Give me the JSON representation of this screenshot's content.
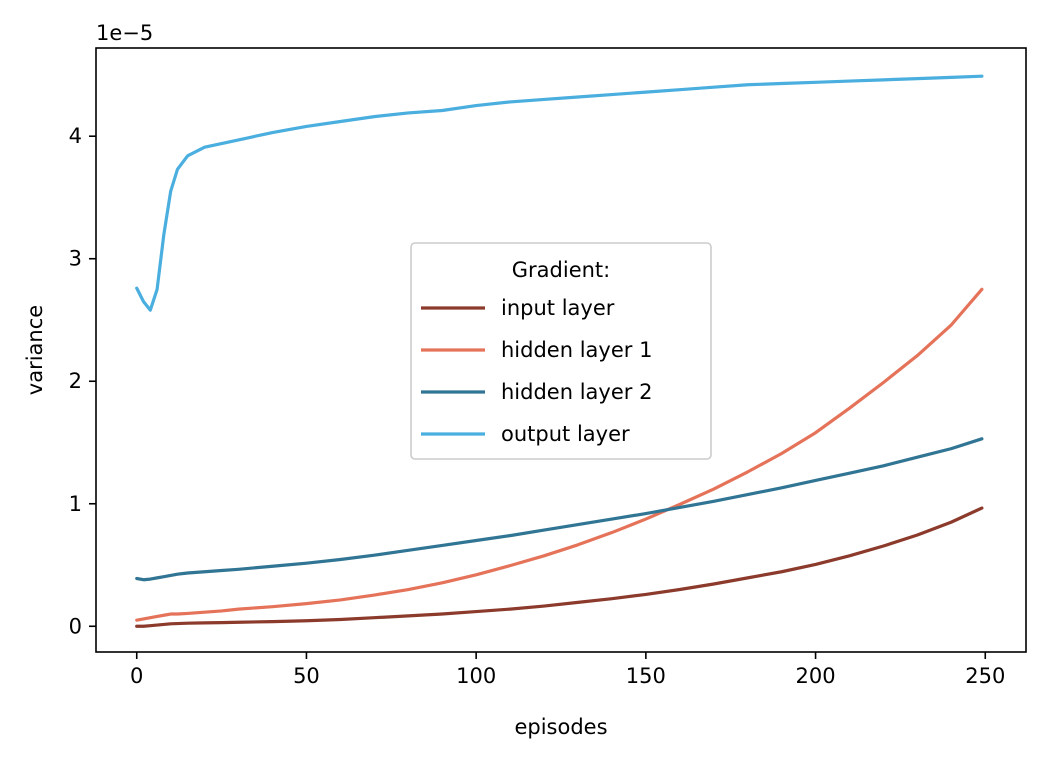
{
  "chart_data": {
    "type": "line",
    "title": "",
    "xlabel": "episodes",
    "ylabel": "variance",
    "y_offset_label": "1e−5",
    "xlim": [
      -12,
      262
    ],
    "ylim": [
      -0.21,
      4.72
    ],
    "xticks": [
      0,
      50,
      100,
      150,
      200,
      250
    ],
    "yticks": [
      0,
      1,
      2,
      3,
      4
    ],
    "grid": false,
    "legend": {
      "title": "Gradient:",
      "placement": "center"
    },
    "x": [
      0,
      2,
      4,
      6,
      8,
      10,
      12,
      15,
      20,
      25,
      30,
      40,
      50,
      60,
      70,
      80,
      90,
      100,
      110,
      120,
      130,
      140,
      150,
      160,
      170,
      180,
      190,
      200,
      210,
      220,
      230,
      240,
      249
    ],
    "series": [
      {
        "name": "input layer",
        "color": "#8B3A2B",
        "values": [
          0.0,
          0.0,
          0.005,
          0.01,
          0.015,
          0.02,
          0.022,
          0.025,
          0.028,
          0.03,
          0.033,
          0.038,
          0.045,
          0.055,
          0.07,
          0.085,
          0.1,
          0.12,
          0.14,
          0.165,
          0.195,
          0.225,
          0.26,
          0.3,
          0.345,
          0.395,
          0.445,
          0.505,
          0.575,
          0.655,
          0.745,
          0.85,
          0.965
        ]
      },
      {
        "name": "hidden layer 1",
        "color": "#E5735A",
        "values": [
          0.05,
          0.06,
          0.07,
          0.08,
          0.09,
          0.1,
          0.1,
          0.105,
          0.115,
          0.125,
          0.14,
          0.16,
          0.185,
          0.215,
          0.255,
          0.3,
          0.355,
          0.42,
          0.495,
          0.575,
          0.665,
          0.765,
          0.875,
          0.995,
          1.12,
          1.26,
          1.41,
          1.58,
          1.78,
          1.99,
          2.21,
          2.46,
          2.75
        ]
      },
      {
        "name": "hidden layer 2",
        "color": "#317594",
        "values": [
          0.39,
          0.38,
          0.385,
          0.395,
          0.405,
          0.415,
          0.425,
          0.435,
          0.445,
          0.455,
          0.465,
          0.49,
          0.515,
          0.545,
          0.58,
          0.62,
          0.66,
          0.7,
          0.74,
          0.785,
          0.83,
          0.875,
          0.92,
          0.97,
          1.02,
          1.075,
          1.13,
          1.19,
          1.25,
          1.31,
          1.38,
          1.45,
          1.53
        ]
      },
      {
        "name": "output layer",
        "color": "#4AAEDF",
        "values": [
          2.76,
          2.65,
          2.58,
          2.75,
          3.2,
          3.55,
          3.73,
          3.84,
          3.91,
          3.94,
          3.97,
          4.03,
          4.08,
          4.12,
          4.16,
          4.19,
          4.21,
          4.25,
          4.28,
          4.3,
          4.32,
          4.34,
          4.36,
          4.38,
          4.4,
          4.42,
          4.43,
          4.44,
          4.45,
          4.46,
          4.47,
          4.48,
          4.49
        ]
      }
    ]
  }
}
